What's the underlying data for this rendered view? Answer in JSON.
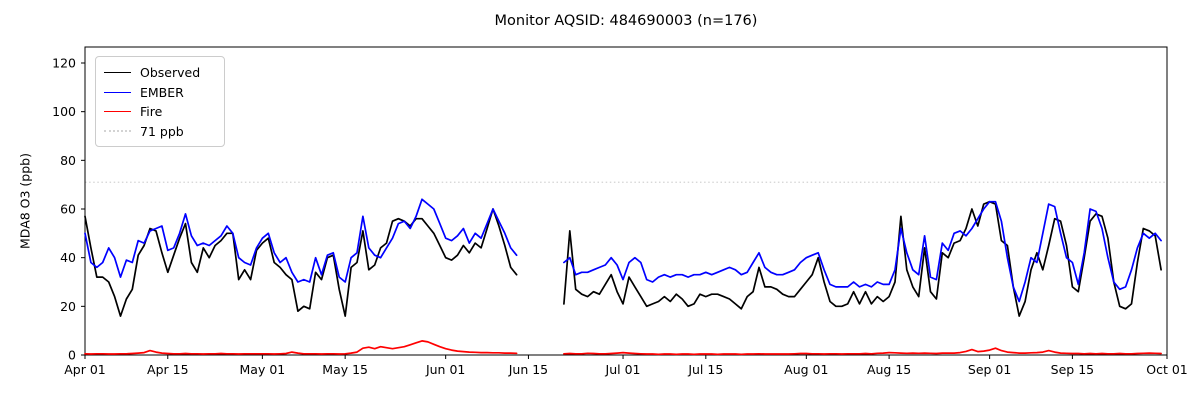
{
  "chart_data": {
    "type": "line",
    "title": "Monitor AQSID: 484690003 (n=176)",
    "xlabel": "",
    "ylabel": "MDA8 O3 (ppb)",
    "n_points": 176,
    "ylim": [
      0,
      126
    ],
    "grid": false,
    "legend_position": "upper left",
    "y_ticks": [
      0,
      20,
      40,
      60,
      80,
      100,
      120
    ],
    "x_range_days": 183,
    "x_ticks": [
      {
        "label": "Apr 01",
        "day": 0
      },
      {
        "label": "Apr 15",
        "day": 14
      },
      {
        "label": "May 01",
        "day": 30
      },
      {
        "label": "May 15",
        "day": 44
      },
      {
        "label": "Jun 01",
        "day": 61
      },
      {
        "label": "Jun 15",
        "day": 75
      },
      {
        "label": "Jul 01",
        "day": 91
      },
      {
        "label": "Jul 15",
        "day": 105
      },
      {
        "label": "Aug 01",
        "day": 122
      },
      {
        "label": "Aug 15",
        "day": 136
      },
      {
        "label": "Sep 01",
        "day": 153
      },
      {
        "label": "Sep 15",
        "day": 167
      },
      {
        "label": "Oct 01",
        "day": 183
      }
    ],
    "threshold": {
      "label": "71 ppb",
      "value": 71,
      "color": "#d3d3d3",
      "style": "dotted"
    },
    "start_date": "Apr 01",
    "end_date": "Sep 30",
    "missing_days": [
      "Jun 14",
      "Jun 15",
      "Jun 16",
      "Jun 17",
      "Jun 18",
      "Jun 19",
      "Jun 20"
    ],
    "series": [
      {
        "name": "Observed",
        "color": "#000000",
        "values": [
          57,
          44,
          32,
          32,
          30,
          24,
          16,
          23,
          27,
          41,
          45,
          52,
          51,
          42,
          34,
          41,
          48,
          54,
          38,
          34,
          44,
          40,
          45,
          47,
          50,
          50,
          31,
          35,
          31,
          43,
          46,
          48,
          38,
          36,
          33,
          31,
          18,
          20,
          19,
          34,
          31,
          40,
          41,
          27,
          16,
          36,
          38,
          51,
          35,
          37,
          44,
          46,
          55,
          56,
          55,
          53,
          56,
          56,
          53,
          50,
          45,
          40,
          39,
          41,
          45,
          42,
          46,
          44,
          52,
          60,
          53,
          45,
          36,
          33,
          null,
          null,
          null,
          null,
          null,
          null,
          null,
          21,
          51,
          27,
          25,
          24,
          26,
          25,
          29,
          33,
          26,
          21,
          32,
          28,
          24,
          20,
          21,
          22,
          24,
          22,
          25,
          23,
          20,
          21,
          25,
          24,
          25,
          25,
          24,
          23,
          21,
          19,
          24,
          26,
          36,
          28,
          28,
          27,
          25,
          24,
          24,
          27,
          30,
          33,
          40,
          30,
          22,
          20,
          20,
          21,
          26,
          21,
          26,
          21,
          24,
          22,
          24,
          30,
          57,
          35,
          28,
          24,
          44,
          26,
          23,
          42,
          40,
          46,
          47,
          52,
          60,
          53,
          62,
          63,
          62,
          47,
          45,
          28,
          16,
          22,
          35,
          42,
          35,
          45,
          56,
          55,
          45,
          28,
          26,
          40,
          55,
          58,
          57,
          48,
          30,
          20,
          19,
          21,
          38,
          52,
          51,
          49,
          35
        ]
      },
      {
        "name": "EMBER",
        "color": "#0000ff",
        "values": [
          50,
          38,
          36,
          38,
          44,
          40,
          32,
          39,
          38,
          47,
          46,
          51,
          52,
          53,
          43,
          44,
          50,
          58,
          49,
          45,
          46,
          45,
          47,
          49,
          53,
          50,
          40,
          38,
          37,
          44,
          48,
          50,
          42,
          38,
          40,
          34,
          30,
          31,
          30,
          40,
          33,
          41,
          42,
          32,
          30,
          40,
          42,
          57,
          44,
          41,
          40,
          44,
          48,
          54,
          55,
          52,
          57,
          64,
          62,
          60,
          54,
          48,
          47,
          49,
          52,
          46,
          50,
          48,
          54,
          60,
          55,
          50,
          44,
          41,
          null,
          null,
          null,
          null,
          null,
          null,
          null,
          38,
          40,
          33,
          34,
          34,
          35,
          36,
          37,
          40,
          37,
          31,
          38,
          40,
          38,
          31,
          30,
          32,
          33,
          32,
          33,
          33,
          32,
          33,
          33,
          34,
          33,
          34,
          35,
          36,
          35,
          33,
          34,
          38,
          42,
          36,
          34,
          33,
          33,
          34,
          35,
          38,
          40,
          41,
          42,
          35,
          29,
          28,
          28,
          28,
          30,
          28,
          29,
          28,
          30,
          29,
          29,
          35,
          52,
          42,
          35,
          33,
          49,
          32,
          31,
          46,
          43,
          50,
          51,
          49,
          52,
          56,
          60,
          63,
          63,
          55,
          40,
          28,
          22,
          30,
          40,
          38,
          50,
          62,
          61,
          50,
          40,
          38,
          29,
          42,
          60,
          59,
          52,
          40,
          30,
          27,
          28,
          35,
          44,
          50,
          48,
          50,
          47
        ]
      },
      {
        "name": "Fire",
        "color": "#ff0000",
        "values": [
          0.5,
          0.4,
          0.5,
          0.5,
          0.4,
          0.4,
          0.5,
          0.5,
          0.6,
          0.8,
          1.0,
          1.8,
          1.2,
          0.8,
          0.6,
          0.5,
          0.5,
          0.6,
          0.5,
          0.5,
          0.4,
          0.5,
          0.5,
          0.6,
          0.5,
          0.5,
          0.4,
          0.5,
          0.5,
          0.5,
          0.5,
          0.5,
          0.4,
          0.5,
          0.6,
          1.2,
          0.8,
          0.5,
          0.5,
          0.5,
          0.4,
          0.5,
          0.5,
          0.4,
          0.5,
          0.8,
          1.2,
          2.8,
          3.2,
          2.6,
          3.4,
          3.0,
          2.6,
          3.0,
          3.4,
          4.2,
          5.0,
          5.8,
          5.4,
          4.4,
          3.4,
          2.6,
          2.0,
          1.6,
          1.4,
          1.2,
          1.1,
          1.0,
          1.0,
          0.9,
          0.9,
          0.8,
          0.8,
          0.7,
          null,
          null,
          null,
          null,
          null,
          null,
          null,
          0.5,
          0.6,
          0.5,
          0.5,
          0.7,
          0.6,
          0.5,
          0.5,
          0.6,
          0.8,
          1.0,
          0.8,
          0.6,
          0.5,
          0.4,
          0.4,
          0.3,
          0.4,
          0.4,
          0.3,
          0.4,
          0.4,
          0.3,
          0.4,
          0.4,
          0.4,
          0.3,
          0.4,
          0.4,
          0.4,
          0.3,
          0.4,
          0.4,
          0.5,
          0.4,
          0.4,
          0.4,
          0.4,
          0.4,
          0.5,
          0.6,
          0.6,
          0.5,
          0.5,
          0.4,
          0.5,
          0.5,
          0.4,
          0.5,
          0.5,
          0.5,
          0.6,
          0.5,
          0.7,
          0.8,
          1.0,
          0.9,
          0.8,
          0.7,
          0.8,
          0.7,
          0.8,
          0.7,
          0.6,
          0.8,
          0.8,
          0.8,
          1.0,
          1.5,
          2.2,
          1.4,
          1.6,
          2.0,
          2.8,
          1.8,
          1.2,
          1.0,
          0.8,
          0.8,
          0.9,
          1.0,
          1.2,
          1.8,
          1.2,
          0.8,
          0.7,
          0.6,
          0.6,
          0.5,
          0.6,
          0.5,
          0.6,
          0.5,
          0.5,
          0.6,
          0.5,
          0.5,
          0.6,
          0.7,
          0.8,
          0.7,
          0.6
        ]
      }
    ]
  }
}
